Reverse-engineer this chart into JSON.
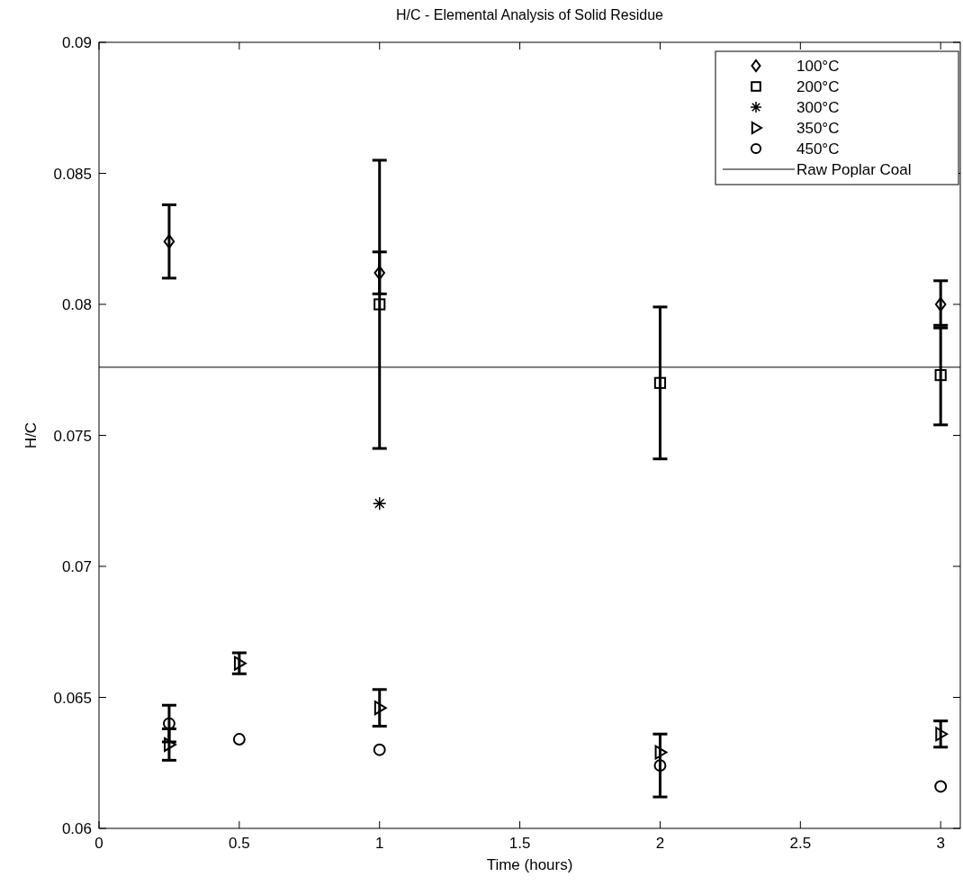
{
  "chart_data": {
    "type": "scatter",
    "title": "H/C - Elemental Analysis of Solid Residue",
    "xlabel": "Time (hours)",
    "ylabel": "H/C",
    "xlim": [
      0,
      3.07
    ],
    "xticks": [
      0,
      0.5,
      1,
      1.5,
      2,
      2.5,
      3
    ],
    "ylim": [
      0.06,
      0.09
    ],
    "yticks": [
      0.06,
      0.065,
      0.07,
      0.075,
      0.08,
      0.085,
      0.09
    ],
    "grid": false,
    "legend": "top right",
    "series": [
      {
        "name": "100°C",
        "color": "#000000",
        "marker": "diamond",
        "x": [
          0.25,
          1,
          3
        ],
        "values": [
          0.0824,
          0.0812,
          0.08
        ],
        "errors": [
          0.0014,
          0.0008,
          0.0009
        ]
      },
      {
        "name": "200°C",
        "color": "#000000",
        "marker": "square",
        "x": [
          1,
          2,
          3
        ],
        "values": [
          0.08,
          0.077,
          0.0773
        ],
        "errors": [
          0.0055,
          0.0029,
          0.0019
        ]
      },
      {
        "name": "300°C",
        "color": "#000000",
        "marker": "cross",
        "x": [
          1
        ],
        "values": [
          0.0724
        ],
        "errors": [
          null
        ]
      },
      {
        "name": "350°C",
        "color": "#000000",
        "marker": "triangle",
        "x": [
          0.25,
          0.5,
          1,
          2,
          3
        ],
        "values": [
          0.0632,
          0.0663,
          0.0646,
          0.0629,
          0.0636
        ],
        "errors": [
          0.0006,
          0.0004,
          0.0007,
          null,
          0.0005
        ]
      },
      {
        "name": "450°C",
        "color": "#000000",
        "marker": "circle",
        "x": [
          0.25,
          0.5,
          1,
          2,
          3
        ],
        "values": [
          0.064,
          0.0634,
          0.063,
          0.0624,
          0.0616
        ],
        "errors": [
          0.0007,
          null,
          null,
          0.0012,
          null
        ]
      }
    ],
    "ref_lines": [
      {
        "axis": "y",
        "value": 0.0776,
        "label": "Raw Poplar Coal",
        "color": "#000000"
      }
    ]
  }
}
